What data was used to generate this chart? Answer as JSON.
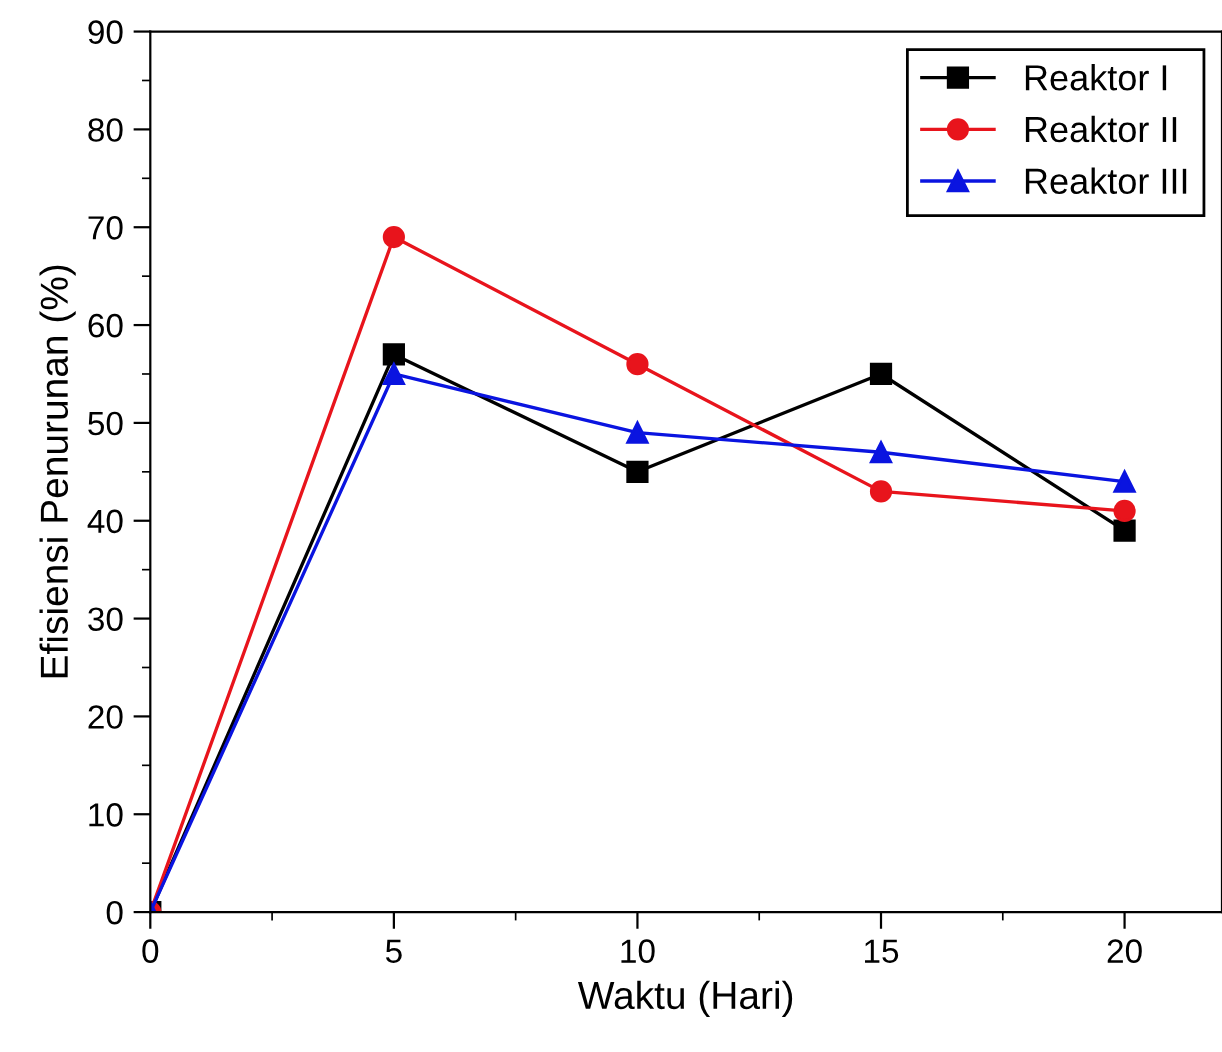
{
  "chart_data": {
    "type": "line",
    "xlabel": "Waktu (Hari)",
    "ylabel": "Efisiensi Penurunan (%)",
    "x": [
      0,
      5,
      10,
      15,
      20
    ],
    "series": [
      {
        "name": "Reaktor I",
        "color": "#000000",
        "marker": "square",
        "values": [
          0,
          57,
          45,
          55,
          39
        ]
      },
      {
        "name": "Reaktor II",
        "color": "#e8141c",
        "marker": "circle",
        "values": [
          0,
          69,
          56,
          43,
          41
        ]
      },
      {
        "name": "Reaktor III",
        "color": "#0a14e0",
        "marker": "triangle",
        "values": [
          0,
          55,
          49,
          47,
          44
        ]
      }
    ],
    "xlim": [
      0,
      22
    ],
    "xticks": [
      0,
      5,
      10,
      15,
      20
    ],
    "ylim": [
      0,
      90
    ],
    "yticks": [
      0,
      10,
      20,
      30,
      40,
      50,
      60,
      70,
      80,
      90
    ],
    "grid": false,
    "legend": "top right",
    "line_style": "solid"
  }
}
